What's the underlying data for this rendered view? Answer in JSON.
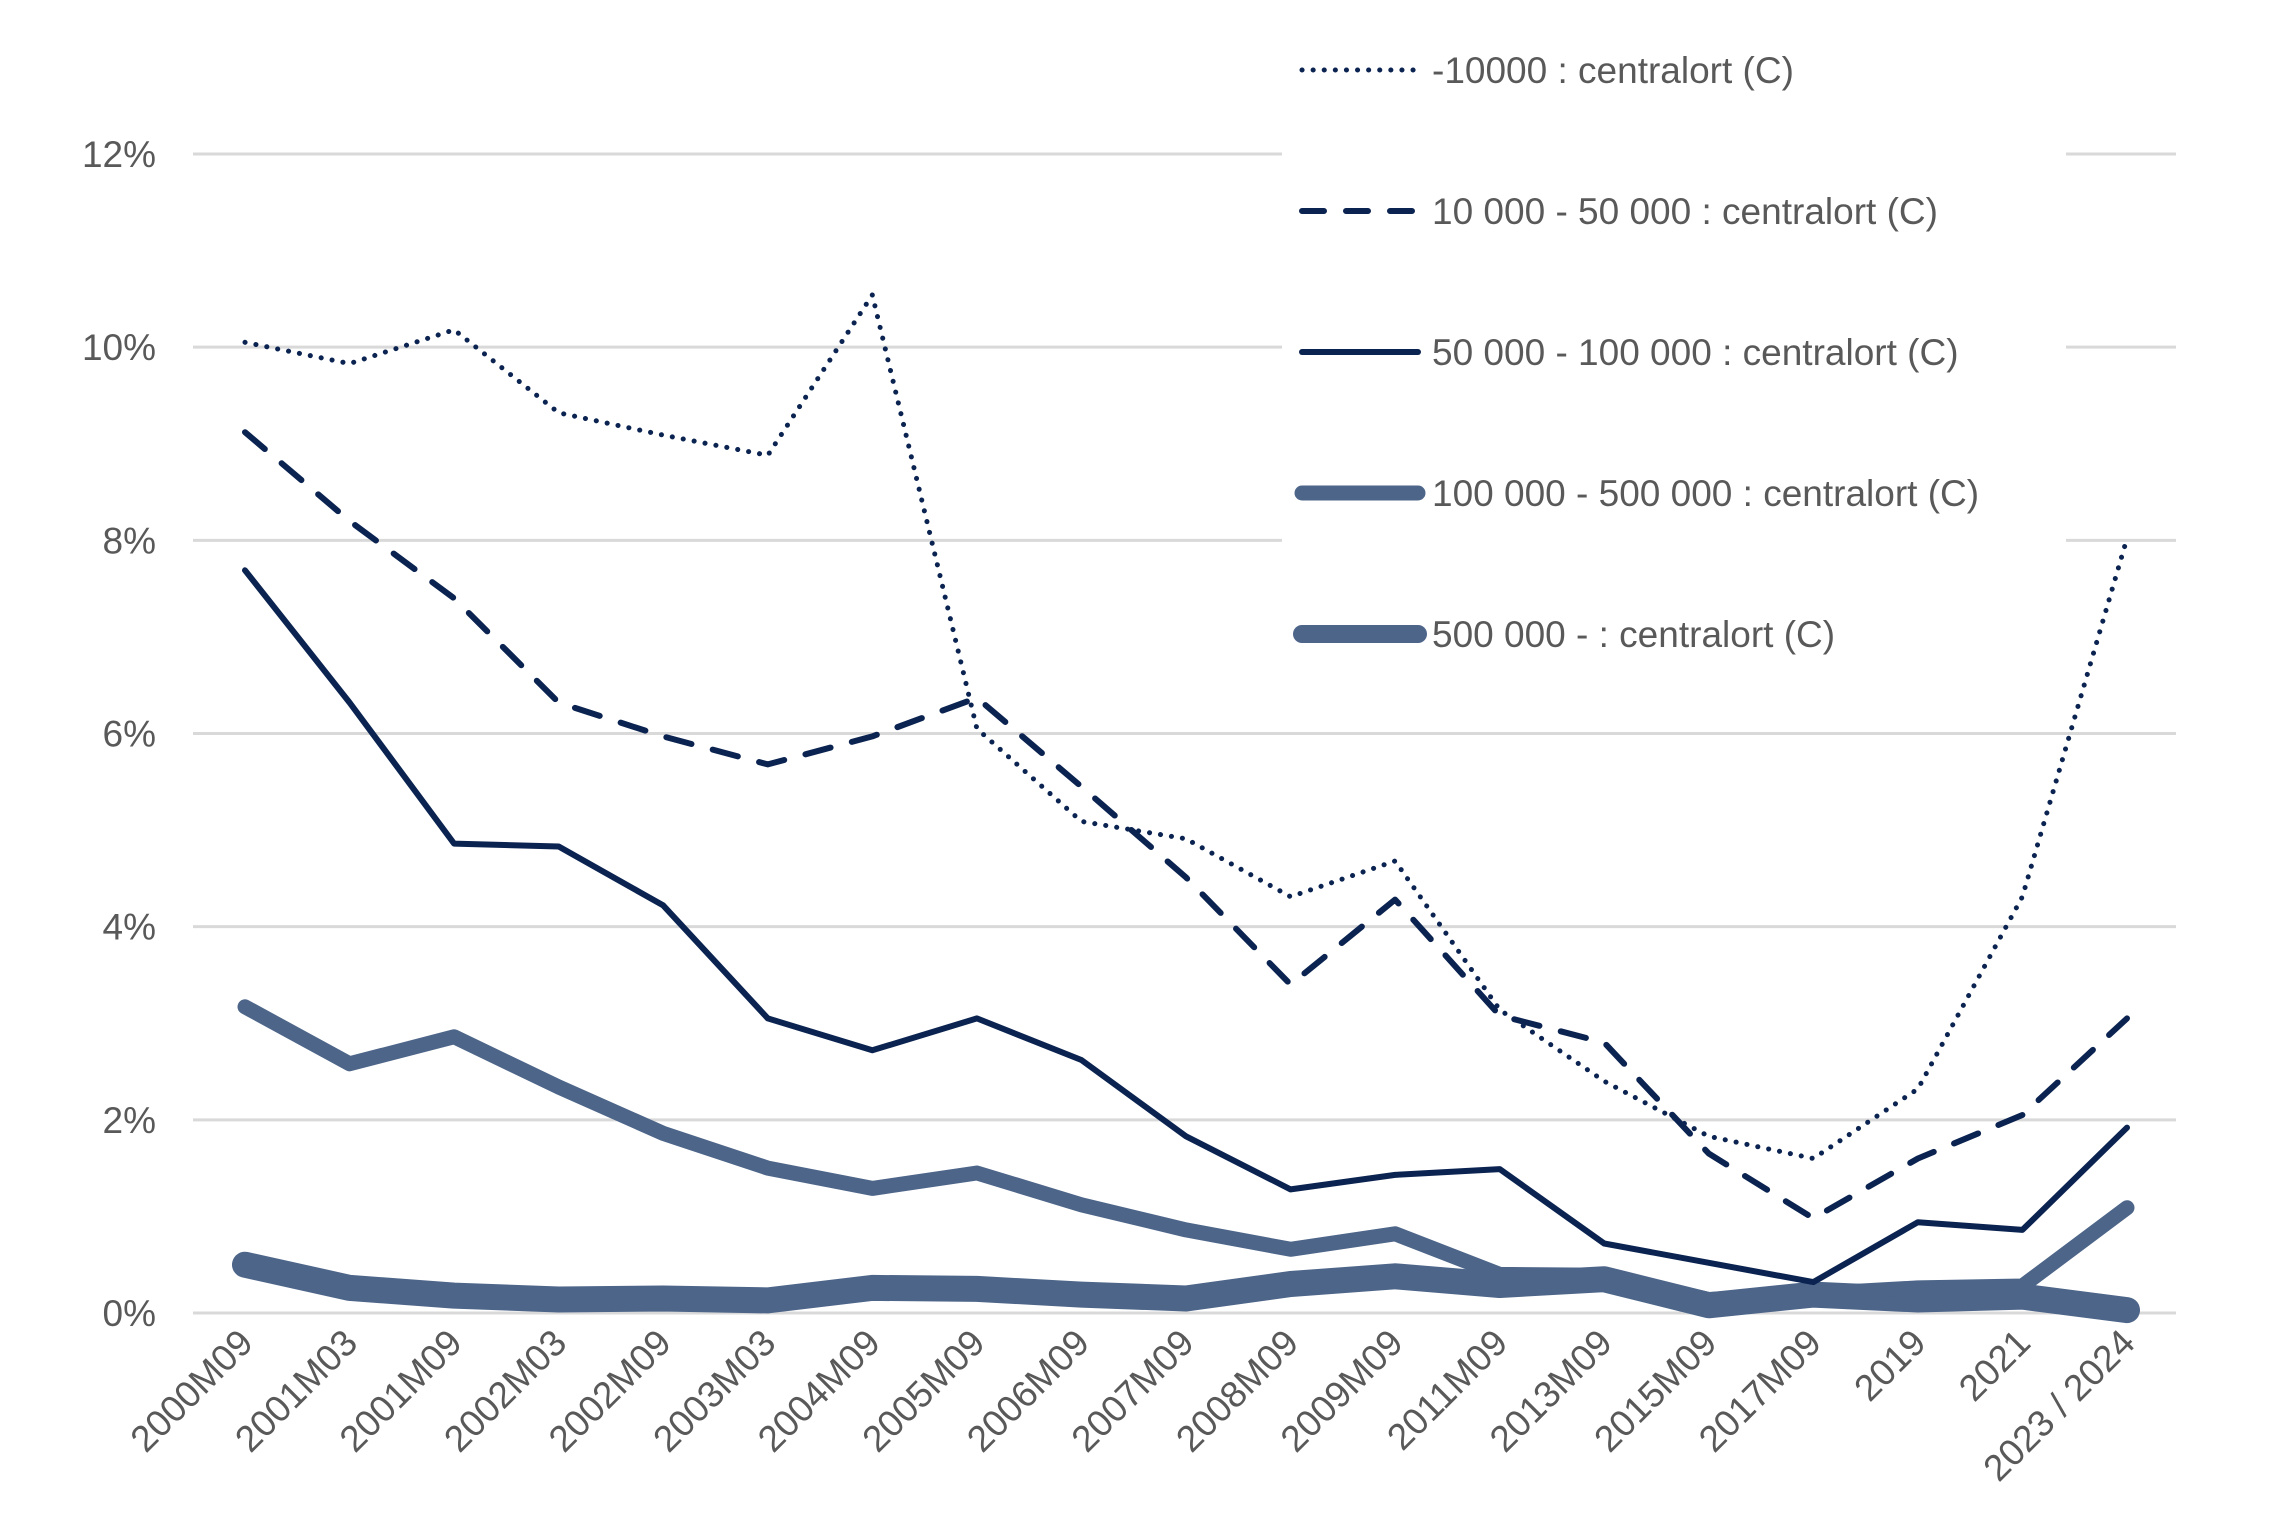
{
  "chart_data": {
    "type": "line",
    "title": "",
    "xlabel": "",
    "ylabel": "",
    "ylim": [
      0,
      12
    ],
    "y_ticks": [
      0,
      2,
      4,
      6,
      8,
      10,
      12
    ],
    "y_tick_labels": [
      "0%",
      "2%",
      "4%",
      "6%",
      "8%",
      "10%",
      "12%"
    ],
    "grid": "horizontal",
    "legend_position": "top-right",
    "categories": [
      "2000M09",
      "2001M03",
      "2001M09",
      "2002M03",
      "2002M09",
      "2003M03",
      "2004M09",
      "2005M09",
      "2006M09",
      "2007M09",
      "2008M09",
      "2009M09",
      "2011M09",
      "2013M09",
      "2015M09",
      "2017M09",
      "2019",
      "2021",
      "2023 / 2024"
    ],
    "series": [
      {
        "name": "-10000 : centralort (C)",
        "style": "dotted",
        "color": "#0b2350",
        "values": [
          10.05,
          9.83,
          10.18,
          9.32,
          9.09,
          8.88,
          10.54,
          6.05,
          5.09,
          4.91,
          4.31,
          4.68,
          3.14,
          2.4,
          1.83,
          1.6,
          2.32,
          4.31,
          8.02
        ]
      },
      {
        "name": "10 000 - 50 000 : centralort (C)",
        "style": "dashed",
        "color": "#0b2350",
        "values": [
          9.12,
          8.2,
          7.4,
          6.32,
          5.97,
          5.68,
          5.97,
          6.37,
          5.45,
          4.51,
          3.4,
          4.28,
          3.08,
          2.8,
          1.65,
          0.98,
          1.6,
          2.05,
          3.05
        ]
      },
      {
        "name": "50 000 - 100 000 : centralort (C)",
        "style": "solid",
        "color": "#0b2350",
        "values": [
          7.69,
          6.32,
          4.86,
          4.83,
          4.22,
          3.05,
          2.72,
          3.05,
          2.62,
          1.83,
          1.28,
          1.43,
          1.49,
          0.72,
          0.52,
          0.32,
          0.94,
          0.86,
          1.92
        ]
      },
      {
        "name": "100 000 - 500 000 : centralort (C)",
        "style": "thick",
        "color": "#4d6589",
        "values": [
          3.17,
          2.58,
          2.86,
          2.34,
          1.86,
          1.5,
          1.29,
          1.45,
          1.12,
          0.86,
          0.66,
          0.82,
          0.4,
          0.39,
          0.14,
          0.2,
          0.26,
          0.28,
          1.09
        ]
      },
      {
        "name": "500 000 - : centralort (C)",
        "style": "extra-thick",
        "color": "#4d6589",
        "values": [
          0.5,
          0.26,
          0.18,
          0.14,
          0.15,
          0.13,
          0.26,
          0.25,
          0.19,
          0.15,
          0.3,
          0.38,
          0.29,
          0.35,
          0.08,
          0.19,
          0.14,
          0.17,
          0.03
        ]
      }
    ]
  }
}
